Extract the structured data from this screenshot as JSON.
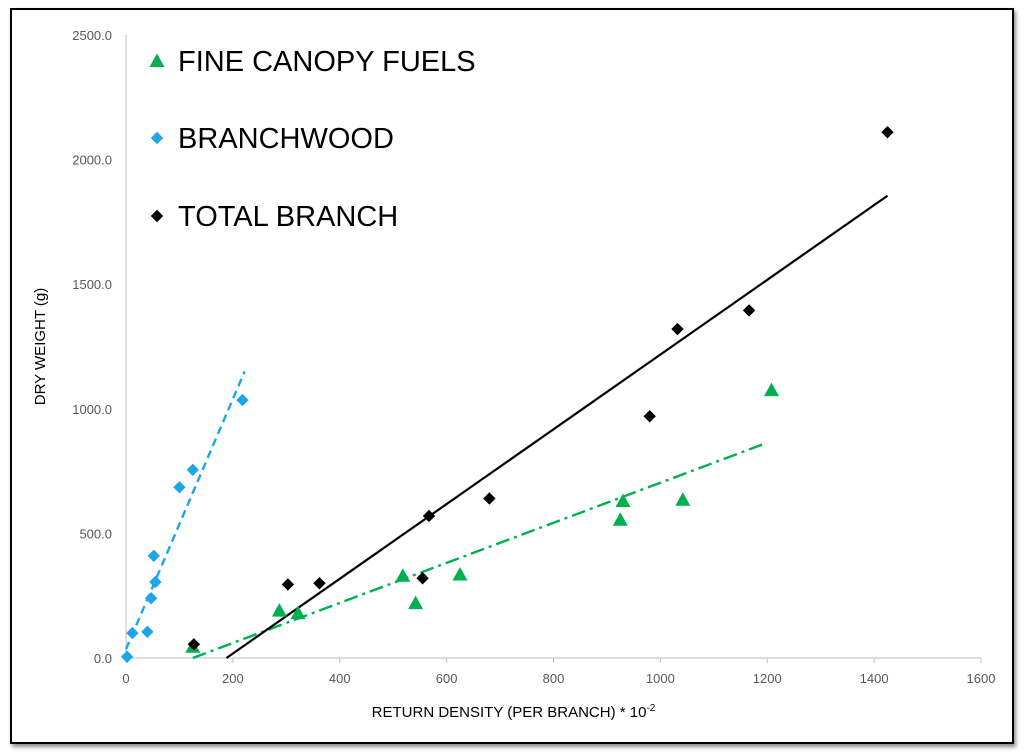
{
  "chart_data": {
    "type": "scatter",
    "xlabel": "RETURN DENSITY (PER BRANCH) * 10",
    "xlabel_superscript": "-2",
    "ylabel": "DRY WEIGHT (g)",
    "xlim": [
      0,
      1600
    ],
    "ylim": [
      0,
      2500
    ],
    "x_ticks": [
      "0",
      "200",
      "400",
      "600",
      "800",
      "1000",
      "1200",
      "1400",
      "1600"
    ],
    "y_ticks": [
      "0.0",
      "500.0",
      "1000.0",
      "1500.0",
      "2000.0",
      "2500.0"
    ],
    "grid": false,
    "legend_placement": "top-left",
    "series": [
      {
        "name": "FINE CANOPY FUELS",
        "color": "#00b050",
        "marker": "triangle",
        "points": [
          [
            125,
            45
          ],
          [
            287,
            190
          ],
          [
            322,
            180
          ],
          [
            518,
            330
          ],
          [
            542,
            220
          ],
          [
            625,
            335
          ],
          [
            925,
            555
          ],
          [
            930,
            630
          ],
          [
            1042,
            635
          ],
          [
            1208,
            1075
          ]
        ],
        "trendline": {
          "style": "dash-dot",
          "from": [
            125,
            0
          ],
          "to": [
            1195,
            860
          ]
        }
      },
      {
        "name": "BRANCHWOOD",
        "color": "#1ca6e8",
        "marker": "diamond",
        "points": [
          [
            2,
            5
          ],
          [
            12,
            100
          ],
          [
            40,
            105
          ],
          [
            47,
            240
          ],
          [
            52,
            410
          ],
          [
            55,
            305
          ],
          [
            100,
            685
          ],
          [
            125,
            755
          ],
          [
            218,
            1035
          ]
        ],
        "trendline": {
          "style": "dashed",
          "from": [
            0,
            35
          ],
          "to": [
            222,
            1150
          ]
        }
      },
      {
        "name": "TOTAL BRANCH",
        "color": "#000000",
        "marker": "diamond",
        "points": [
          [
            127,
            55
          ],
          [
            303,
            295
          ],
          [
            362,
            300
          ],
          [
            555,
            320
          ],
          [
            567,
            570
          ],
          [
            680,
            640
          ],
          [
            980,
            970
          ],
          [
            1032,
            1320
          ],
          [
            1166,
            1395
          ],
          [
            1425,
            2110
          ]
        ],
        "trendline": {
          "style": "solid",
          "from": [
            188,
            0
          ],
          "to": [
            1425,
            1855
          ]
        }
      }
    ]
  }
}
